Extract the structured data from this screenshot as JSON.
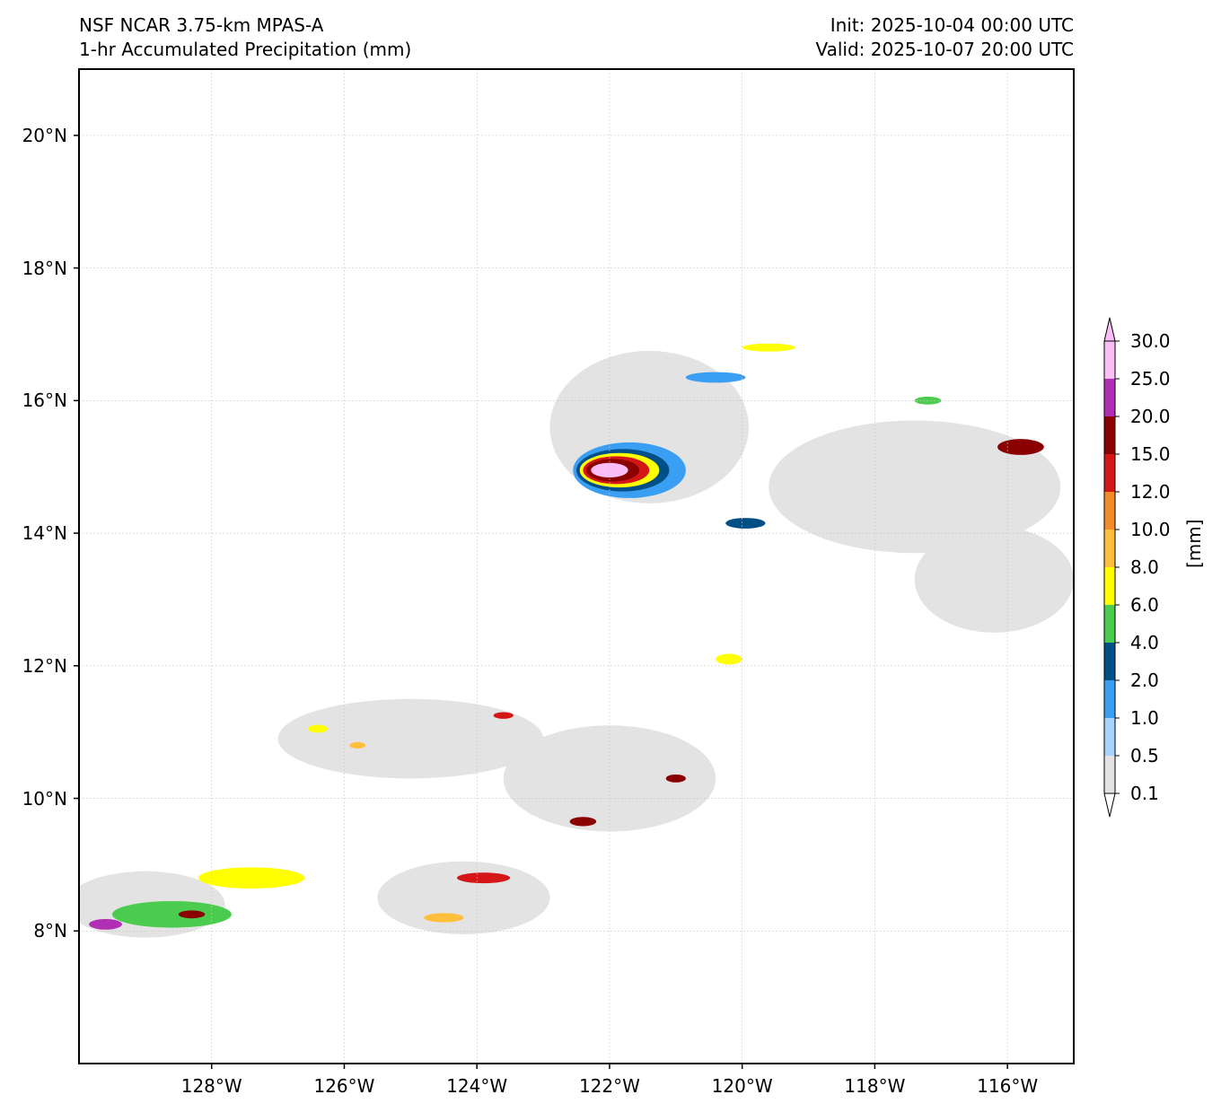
{
  "title": {
    "model": "NSF NCAR 3.75-km MPAS-A",
    "field": "1-hr Accumulated Precipitation (mm)",
    "init": "Init: 2025-10-04 00:00 UTC",
    "valid": "Valid: 2025-10-07 20:00 UTC"
  },
  "map": {
    "lon_range": [
      -130.0,
      -115.0
    ],
    "lat_range": [
      6.0,
      21.0
    ],
    "gridlines": true,
    "lat_ticks": [
      {
        "value": 20,
        "label": "20°N"
      },
      {
        "value": 18,
        "label": "18°N"
      },
      {
        "value": 16,
        "label": "16°N"
      },
      {
        "value": 14,
        "label": "14°N"
      },
      {
        "value": 12,
        "label": "12°N"
      },
      {
        "value": 10,
        "label": "10°N"
      },
      {
        "value": 8,
        "label": "8°N"
      }
    ],
    "lon_ticks": [
      {
        "value": -128,
        "label": "128°W"
      },
      {
        "value": -126,
        "label": "126°W"
      },
      {
        "value": -124,
        "label": "124°W"
      },
      {
        "value": -122,
        "label": "122°W"
      },
      {
        "value": -120,
        "label": "120°W"
      },
      {
        "value": -118,
        "label": "118°W"
      },
      {
        "value": -116,
        "label": "116°W"
      }
    ]
  },
  "colorbar": {
    "unit": "[mm]",
    "extend": "both",
    "levels": [
      "0.1",
      "0.5",
      "1.0",
      "2.0",
      "4.0",
      "6.0",
      "8.0",
      "10.0",
      "12.0",
      "15.0",
      "20.0",
      "25.0",
      "30.0"
    ],
    "colors": [
      "#e3e3e3",
      "#a6d2fb",
      "#3a9ef3",
      "#004f87",
      "#4ccc4e",
      "#ffff00",
      "#ffbe3c",
      "#f38b2a",
      "#d41616",
      "#8b0000",
      "#b12fb3",
      "#fbbdf5"
    ]
  },
  "chart_data": {
    "type": "heatmap",
    "variable": "1-hr Accumulated Precipitation",
    "units": "mm",
    "features": [
      {
        "lon": -121.4,
        "lat": 15.6,
        "rx": 1.5,
        "ry": 1.15,
        "level": 0
      },
      {
        "lon": -121.7,
        "lat": 14.95,
        "rx": 0.85,
        "ry": 0.42,
        "level": 2
      },
      {
        "lon": -121.8,
        "lat": 14.95,
        "rx": 0.7,
        "ry": 0.32,
        "level": 3
      },
      {
        "lon": -121.85,
        "lat": 14.95,
        "rx": 0.6,
        "ry": 0.26,
        "level": 5
      },
      {
        "lon": -121.9,
        "lat": 14.95,
        "rx": 0.5,
        "ry": 0.21,
        "level": 8
      },
      {
        "lon": -121.95,
        "lat": 14.95,
        "rx": 0.4,
        "ry": 0.17,
        "level": 9
      },
      {
        "lon": -122.0,
        "lat": 14.95,
        "rx": 0.28,
        "ry": 0.11,
        "level": 11
      },
      {
        "lon": -120.4,
        "lat": 16.35,
        "rx": 0.45,
        "ry": 0.08,
        "level": 2
      },
      {
        "lon": -119.6,
        "lat": 16.8,
        "rx": 0.4,
        "ry": 0.06,
        "level": 5
      },
      {
        "lon": -119.95,
        "lat": 14.15,
        "rx": 0.3,
        "ry": 0.08,
        "level": 3
      },
      {
        "lon": -117.4,
        "lat": 14.7,
        "rx": 2.2,
        "ry": 1.0,
        "level": 0
      },
      {
        "lon": -116.2,
        "lat": 13.3,
        "rx": 1.2,
        "ry": 0.8,
        "level": 0
      },
      {
        "lon": -115.8,
        "lat": 15.3,
        "rx": 0.35,
        "ry": 0.12,
        "level": 9
      },
      {
        "lon": -117.2,
        "lat": 16.0,
        "rx": 0.2,
        "ry": 0.06,
        "level": 4
      },
      {
        "lon": -129.0,
        "lat": 8.4,
        "rx": 1.2,
        "ry": 0.5,
        "level": 0
      },
      {
        "lon": -128.6,
        "lat": 8.25,
        "rx": 0.9,
        "ry": 0.2,
        "level": 4
      },
      {
        "lon": -129.6,
        "lat": 8.1,
        "rx": 0.25,
        "ry": 0.08,
        "level": 10
      },
      {
        "lon": -128.3,
        "lat": 8.25,
        "rx": 0.2,
        "ry": 0.06,
        "level": 9
      },
      {
        "lon": -127.4,
        "lat": 8.8,
        "rx": 0.8,
        "ry": 0.16,
        "level": 5
      },
      {
        "lon": -124.2,
        "lat": 8.5,
        "rx": 1.3,
        "ry": 0.55,
        "level": 0
      },
      {
        "lon": -123.9,
        "lat": 8.8,
        "rx": 0.4,
        "ry": 0.08,
        "level": 8
      },
      {
        "lon": -124.5,
        "lat": 8.2,
        "rx": 0.3,
        "ry": 0.07,
        "level": 6
      },
      {
        "lon": -122.0,
        "lat": 10.3,
        "rx": 1.6,
        "ry": 0.8,
        "level": 0
      },
      {
        "lon": -121.0,
        "lat": 10.3,
        "rx": 0.15,
        "ry": 0.06,
        "level": 9
      },
      {
        "lon": -122.4,
        "lat": 9.65,
        "rx": 0.2,
        "ry": 0.07,
        "level": 9
      },
      {
        "lon": -120.2,
        "lat": 12.1,
        "rx": 0.2,
        "ry": 0.08,
        "level": 5
      },
      {
        "lon": -125.0,
        "lat": 10.9,
        "rx": 2.0,
        "ry": 0.6,
        "level": 0
      },
      {
        "lon": -126.4,
        "lat": 11.05,
        "rx": 0.15,
        "ry": 0.06,
        "level": 5
      },
      {
        "lon": -125.8,
        "lat": 10.8,
        "rx": 0.12,
        "ry": 0.05,
        "level": 6
      },
      {
        "lon": -123.6,
        "lat": 11.25,
        "rx": 0.15,
        "ry": 0.05,
        "level": 8
      }
    ]
  }
}
